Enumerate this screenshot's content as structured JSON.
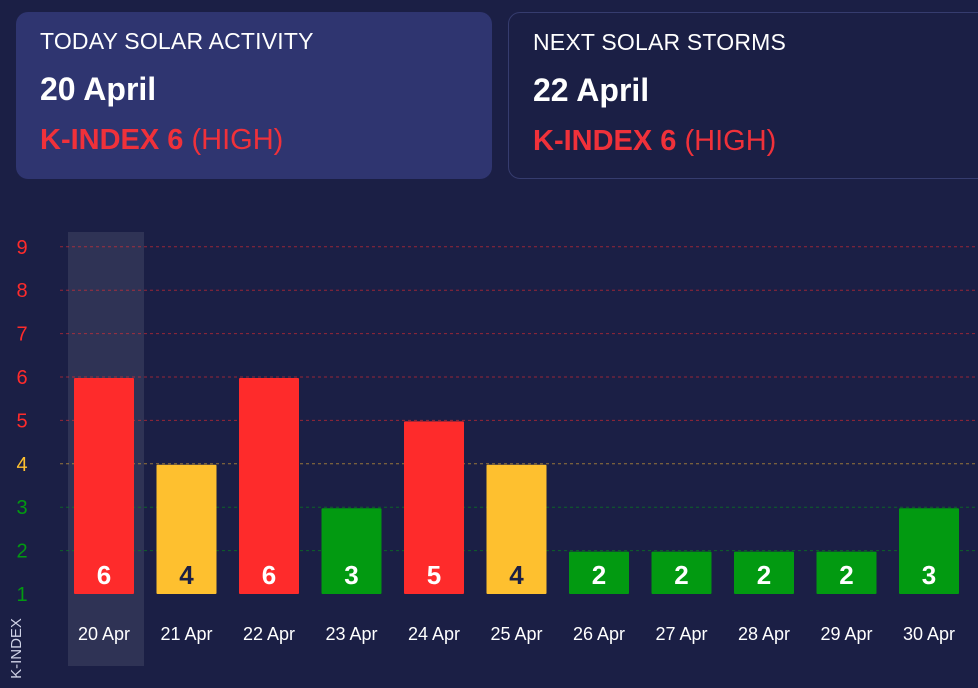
{
  "today": {
    "title": "TODAY SOLAR ACTIVITY",
    "date": "20 April",
    "k_label": "K-INDEX 6",
    "level": "(HIGH)"
  },
  "next": {
    "title": "NEXT SOLAR STORMS",
    "date": "22 April",
    "k_label": "K-INDEX 6",
    "level": "(HIGH)"
  },
  "colors": {
    "high": "#fe2b2b",
    "medium": "#fec02f",
    "low": "#029a11",
    "background": "#1b1f45",
    "card": "#2f3570"
  },
  "chart_data": {
    "type": "bar",
    "categories": [
      "20 Apr",
      "21 Apr",
      "22 Apr",
      "23 Apr",
      "24 Apr",
      "25 Apr",
      "26 Apr",
      "27 Apr",
      "28 Apr",
      "29 Apr",
      "30 Apr"
    ],
    "values": [
      6,
      4,
      6,
      3,
      5,
      4,
      2,
      2,
      2,
      2,
      3
    ],
    "yticks": [
      1,
      2,
      3,
      4,
      5,
      6,
      7,
      8,
      9
    ],
    "ylim": [
      1,
      9
    ],
    "ylabel": "K-INDEX",
    "highlighted_category": "20 Apr",
    "grid": "horizontal dashed"
  }
}
